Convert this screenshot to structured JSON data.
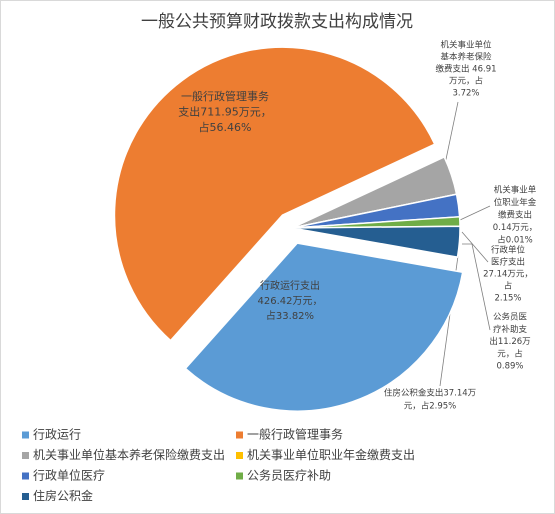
{
  "chart_data": {
    "type": "pie",
    "title": "一般公共预算财政拨款支出构成情况",
    "categories": [
      "行政运行",
      "一般行政管理事务",
      "机关事业单位基本养老保险缴费支出",
      "机关事业单位职业年金缴费支出",
      "行政单位医疗",
      "公务员医疗补助",
      "住房公积金"
    ],
    "values": [
      426.42,
      711.95,
      46.91,
      0.14,
      27.14,
      11.26,
      37.14
    ],
    "value_labels": [
      [
        "行政运行支出",
        "426.42万元，",
        "占33.82%"
      ],
      [
        "一般行政管理事务",
        "支出711.95万元，",
        "占56.46%"
      ],
      [
        "机关事业单位",
        "基本养老保险",
        "缴费支出 46.91",
        "万元，占",
        "3.72%"
      ],
      [
        "机关事业单",
        "位职业年金",
        "缴费支出",
        "0.14万元，",
        "占0.01%"
      ],
      [
        "行政单位",
        "医疗支出",
        "27.14万元，",
        "占",
        "2.15%"
      ],
      [
        "公务员医",
        "疗补助支",
        "出11.26万",
        "元，占",
        "0.89%"
      ],
      [
        "住房公积金支出37.14万",
        "元，占2.95%"
      ]
    ],
    "colors": [
      "#5b9bd5",
      "#ed7d31",
      "#a5a5a5",
      "#ffc000",
      "#4472c4",
      "#70ad47",
      "#255e91"
    ]
  }
}
